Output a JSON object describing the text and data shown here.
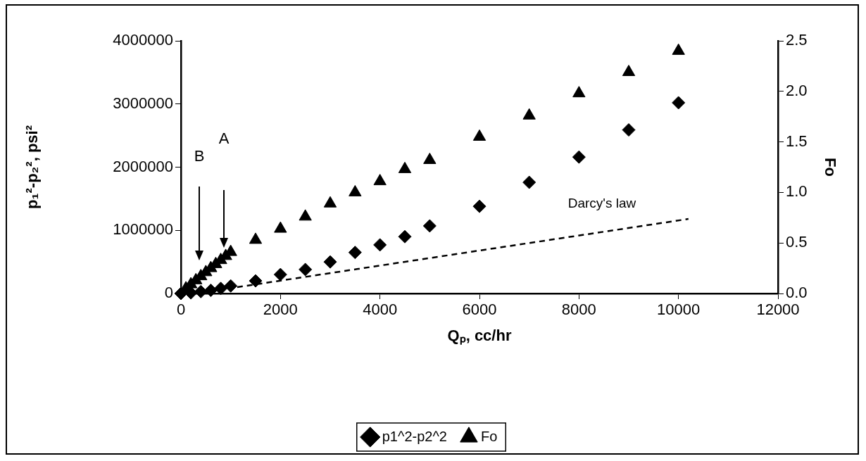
{
  "chart_data": {
    "type": "scatter",
    "xlabel": "Qₚ, cc/hr",
    "ylabel": "p₁²-p₂², psi²",
    "y2label": "Fo",
    "xlim": [
      0,
      12000
    ],
    "xticks": [
      0,
      2000,
      4000,
      6000,
      8000,
      10000,
      12000
    ],
    "ylim": [
      0,
      4000000
    ],
    "yticks": [
      0,
      1000000,
      2000000,
      3000000,
      4000000
    ],
    "y2lim": [
      0,
      2.5
    ],
    "y2ticks": [
      {
        "value": 0,
        "label": "0.0"
      },
      {
        "value": 0.5,
        "label": "0.5"
      },
      {
        "value": 1,
        "label": "1.0"
      },
      {
        "value": 1.5,
        "label": "1.5"
      },
      {
        "value": 2,
        "label": "2.0"
      },
      {
        "value": 2.5,
        "label": "2.5"
      }
    ],
    "grid": false,
    "legend": "bottom",
    "series": [
      {
        "name": "p1^2-p2^2",
        "color": "#000000",
        "marker": "diamond",
        "x": [
          0,
          200,
          400,
          600,
          800,
          1000,
          1500,
          2000,
          2500,
          3000,
          3500,
          4000,
          4500,
          5000,
          6000,
          7000,
          8000,
          9000,
          10000
        ],
        "values": [
          0,
          10000,
          30000,
          50000,
          80000,
          120000,
          200000,
          300000,
          380000,
          500000,
          650000,
          770000,
          900000,
          1070000,
          1380000,
          1760000,
          2160000,
          2590000,
          3020000
        ]
      },
      {
        "name": "Fo",
        "color": "#000000",
        "marker": "triangle",
        "axis": "y2",
        "x": [
          100,
          200,
          300,
          400,
          500,
          600,
          700,
          800,
          900,
          1000,
          1500,
          2000,
          2500,
          3000,
          3500,
          4000,
          4500,
          5000,
          6000,
          7000,
          8000,
          9000,
          10000
        ],
        "values": [
          0.05,
          0.09,
          0.13,
          0.17,
          0.21,
          0.25,
          0.29,
          0.33,
          0.37,
          0.41,
          0.53,
          0.64,
          0.76,
          0.89,
          1.0,
          1.11,
          1.23,
          1.32,
          1.55,
          1.76,
          1.98,
          2.19,
          2.4
        ]
      },
      {
        "type": "line",
        "color": "#000000",
        "marker": "none",
        "line_style": "dashed",
        "x": [
          1130,
          10200
        ],
        "values": [
          100000,
          1180000
        ]
      }
    ],
    "annotations": [
      "A",
      "B",
      "Darcy's law"
    ]
  }
}
